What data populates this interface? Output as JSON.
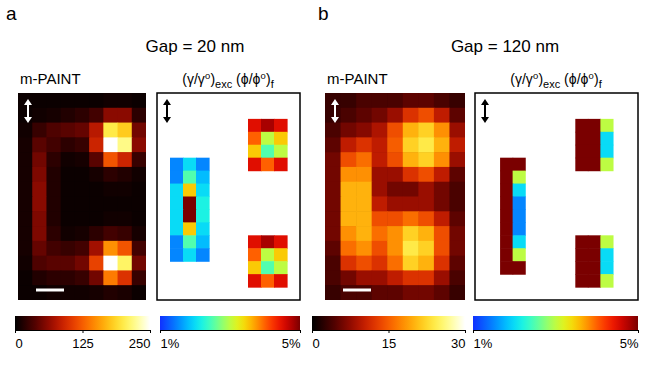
{
  "chart_data": [
    {
      "type": "heatmap",
      "label": "a",
      "title": "Gap = 20 nm",
      "panels": [
        {
          "title": "m-PAINT",
          "cells": [
            [
              5,
              5,
              5,
              5,
              5,
              5,
              8,
              8,
              5
            ],
            [
              5,
              8,
              10,
              15,
              20,
              30,
              60,
              60,
              20
            ],
            [
              8,
              25,
              35,
              40,
              45,
              80,
              200,
              180,
              50
            ],
            [
              10,
              40,
              30,
              20,
              25,
              90,
              250,
              220,
              60
            ],
            [
              10,
              50,
              20,
              8,
              10,
              40,
              120,
              90,
              25
            ],
            [
              10,
              55,
              15,
              5,
              5,
              10,
              20,
              15,
              8
            ],
            [
              10,
              60,
              15,
              5,
              5,
              5,
              8,
              8,
              5
            ],
            [
              10,
              60,
              15,
              5,
              5,
              5,
              5,
              5,
              5
            ],
            [
              10,
              55,
              15,
              5,
              5,
              5,
              8,
              8,
              5
            ],
            [
              10,
              55,
              20,
              8,
              10,
              20,
              30,
              25,
              10
            ],
            [
              10,
              45,
              30,
              25,
              30,
              70,
              150,
              120,
              30
            ],
            [
              8,
              35,
              40,
              40,
              50,
              110,
              250,
              210,
              50
            ],
            [
              5,
              15,
              20,
              20,
              25,
              50,
              140,
              100,
              25
            ],
            [
              5,
              5,
              8,
              8,
              8,
              10,
              15,
              12,
              5
            ]
          ],
          "colorbar": {
            "range": [
              0,
              250
            ],
            "ticks": [
              0,
              125,
              250
            ]
          }
        },
        {
          "title": [
            "(γ/γ⁰)",
            "exc",
            " (ϕ/ϕ⁰)",
            "f"
          ],
          "cells": [
            [
              null,
              null,
              null,
              null,
              null,
              null,
              null,
              null,
              null,
              null,
              null
            ],
            [
              null,
              null,
              null,
              null,
              null,
              null,
              null,
              null,
              null,
              null,
              null
            ],
            [
              null,
              null,
              null,
              null,
              null,
              null,
              null,
              4.5,
              4.8,
              4.5,
              null
            ],
            [
              null,
              null,
              null,
              null,
              null,
              null,
              null,
              4,
              3,
              3.5,
              null
            ],
            [
              null,
              null,
              null,
              null,
              null,
              null,
              null,
              3.5,
              2.5,
              3,
              null
            ],
            [
              null,
              1.5,
              2,
              1.5,
              null,
              null,
              null,
              4.5,
              4,
              4.5,
              null
            ],
            [
              null,
              1.5,
              2.5,
              1.8,
              null,
              null,
              null,
              null,
              null,
              null,
              null
            ],
            [
              null,
              2,
              3.5,
              2,
              null,
              null,
              null,
              null,
              null,
              null,
              null
            ],
            [
              null,
              2,
              5,
              2.2,
              null,
              null,
              null,
              null,
              null,
              null,
              null
            ],
            [
              null,
              2,
              5,
              2.2,
              null,
              null,
              null,
              null,
              null,
              null,
              null
            ],
            [
              null,
              2,
              3.5,
              2,
              null,
              null,
              null,
              null,
              null,
              null,
              null
            ],
            [
              null,
              1.5,
              2.5,
              1.8,
              null,
              null,
              null,
              4.5,
              4.8,
              4.5,
              null
            ],
            [
              null,
              1.5,
              2,
              1.5,
              null,
              null,
              null,
              4,
              3,
              3.5,
              null
            ],
            [
              null,
              null,
              null,
              null,
              null,
              null,
              null,
              3.5,
              2.5,
              3,
              null
            ],
            [
              null,
              null,
              null,
              null,
              null,
              null,
              null,
              4.5,
              4,
              4.5,
              null
            ],
            [
              null,
              null,
              null,
              null,
              null,
              null,
              null,
              null,
              null,
              null,
              null
            ]
          ],
          "colorbar": {
            "range": [
              1,
              5
            ],
            "ticks": [
              {
                "value": 1,
                "label": "1%"
              },
              {
                "value": 5,
                "label": "5%"
              }
            ]
          }
        }
      ]
    },
    {
      "type": "heatmap",
      "label": "b",
      "title": "Gap = 120 nm",
      "panels": [
        {
          "title": "m-PAINT",
          "cells": [
            [
              3,
              3,
              4,
              4,
              4,
              5,
              5,
              4,
              3
            ],
            [
              3,
              4,
              5,
              6,
              8,
              12,
              14,
              10,
              5
            ],
            [
              4,
              6,
              7,
              9,
              14,
              20,
              22,
              18,
              8
            ],
            [
              5,
              10,
              12,
              10,
              15,
              22,
              24,
              20,
              10
            ],
            [
              6,
              14,
              16,
              10,
              14,
              20,
              22,
              18,
              8
            ],
            [
              6,
              18,
              18,
              8,
              8,
              12,
              14,
              10,
              5
            ],
            [
              6,
              20,
              20,
              8,
              6,
              6,
              8,
              6,
              4
            ],
            [
              6,
              20,
              20,
              10,
              8,
              8,
              8,
              6,
              4
            ],
            [
              6,
              20,
              20,
              14,
              14,
              16,
              14,
              10,
              5
            ],
            [
              6,
              18,
              20,
              16,
              18,
              22,
              20,
              14,
              6
            ],
            [
              5,
              16,
              18,
              14,
              18,
              24,
              22,
              14,
              6
            ],
            [
              4,
              12,
              14,
              12,
              16,
              22,
              20,
              12,
              5
            ],
            [
              4,
              6,
              8,
              8,
              10,
              12,
              12,
              8,
              4
            ],
            [
              3,
              4,
              4,
              5,
              5,
              6,
              6,
              5,
              3
            ]
          ],
          "colorbar": {
            "range": [
              0,
              30
            ],
            "ticks": [
              0,
              15,
              30
            ]
          }
        },
        {
          "title": [
            "(γ/γ⁰)",
            "exc",
            " (ϕ/ϕ⁰)",
            "f"
          ],
          "cells": [
            [
              null,
              null,
              null,
              null,
              null,
              null,
              null,
              null,
              null,
              null,
              null,
              null,
              null
            ],
            [
              null,
              null,
              null,
              null,
              null,
              null,
              null,
              null,
              null,
              null,
              null,
              null,
              null
            ],
            [
              null,
              null,
              null,
              null,
              null,
              null,
              null,
              null,
              5,
              5,
              3,
              null,
              null
            ],
            [
              null,
              null,
              null,
              null,
              null,
              null,
              null,
              null,
              5,
              5,
              2,
              null,
              null
            ],
            [
              null,
              null,
              null,
              null,
              null,
              null,
              null,
              null,
              5,
              5,
              2,
              null,
              null
            ],
            [
              null,
              null,
              5,
              5,
              null,
              null,
              null,
              null,
              5,
              5,
              3,
              null,
              null
            ],
            [
              null,
              null,
              5,
              3,
              null,
              null,
              null,
              null,
              null,
              null,
              null,
              null,
              null
            ],
            [
              null,
              null,
              5,
              2,
              null,
              null,
              null,
              null,
              null,
              null,
              null,
              null,
              null
            ],
            [
              null,
              null,
              5,
              1.5,
              null,
              null,
              null,
              null,
              null,
              null,
              null,
              null,
              null
            ],
            [
              null,
              null,
              5,
              1.5,
              null,
              null,
              null,
              null,
              null,
              null,
              null,
              null,
              null
            ],
            [
              null,
              null,
              5,
              1.5,
              null,
              null,
              null,
              null,
              null,
              null,
              null,
              null,
              null
            ],
            [
              null,
              null,
              5,
              2,
              null,
              null,
              null,
              null,
              5,
              5,
              3,
              null,
              null
            ],
            [
              null,
              null,
              5,
              3,
              null,
              null,
              null,
              null,
              5,
              5,
              2,
              null,
              null
            ],
            [
              null,
              null,
              5,
              5,
              null,
              null,
              null,
              null,
              5,
              5,
              2,
              null,
              null
            ],
            [
              null,
              null,
              null,
              null,
              null,
              null,
              null,
              null,
              5,
              5,
              3,
              null,
              null
            ],
            [
              null,
              null,
              null,
              null,
              null,
              null,
              null,
              null,
              null,
              null,
              null,
              null,
              null
            ]
          ],
          "colorbar": {
            "range": [
              1,
              5
            ],
            "ticks": [
              {
                "value": 1,
                "label": "1%"
              },
              {
                "value": 5,
                "label": "5%"
              }
            ]
          }
        }
      ]
    }
  ]
}
